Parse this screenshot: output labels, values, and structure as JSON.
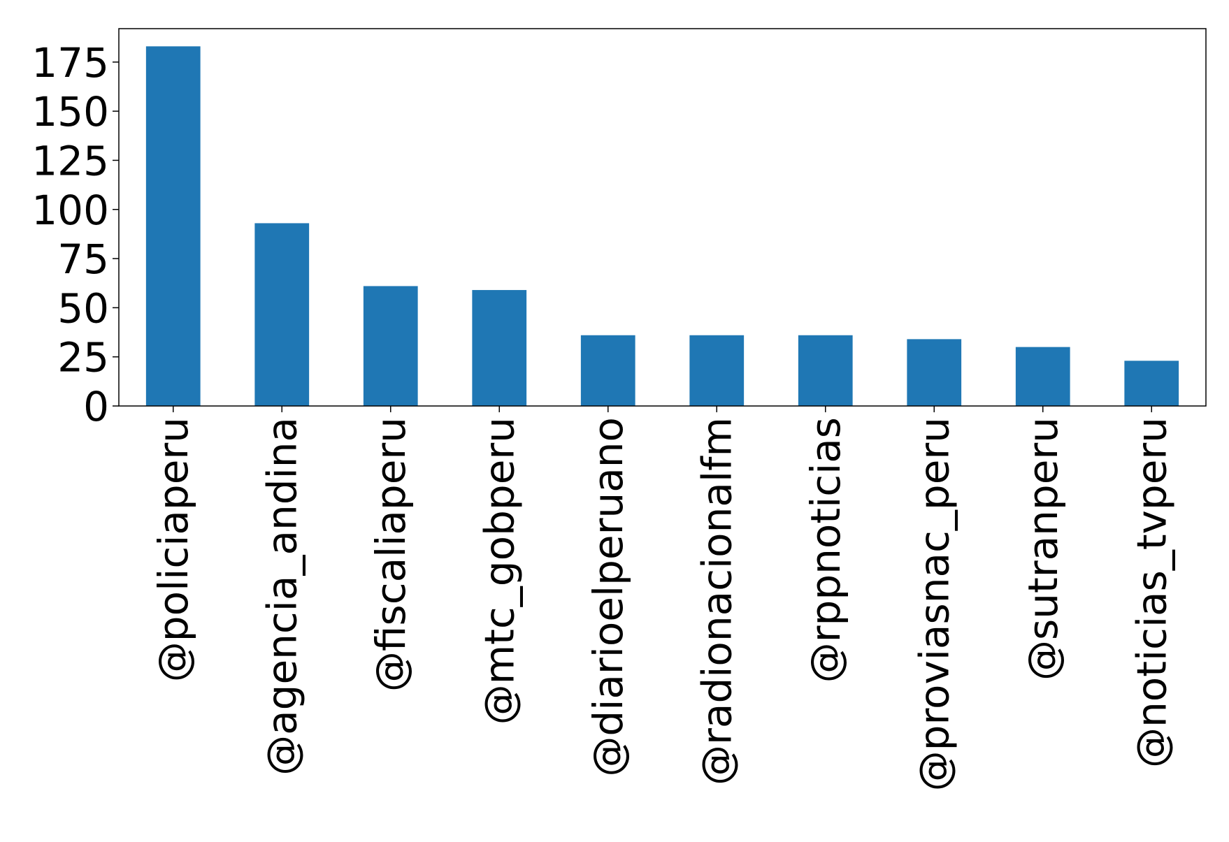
{
  "chart_data": {
    "type": "bar",
    "title": "",
    "xlabel": "",
    "ylabel": "",
    "categories": [
      "@policiaperu",
      "@agencia_andina",
      "@fiscaliaperu",
      "@mtc_gobperu",
      "@diarioelperuano",
      "@radionacionalfm",
      "@rppnoticias",
      "@proviasnac_peru",
      "@sutranperu",
      "@noticias_tvperu"
    ],
    "values": [
      183,
      93,
      61,
      59,
      36,
      36,
      36,
      34,
      30,
      23
    ],
    "ylim": [
      0,
      192
    ],
    "yticks": [
      0,
      25,
      50,
      75,
      100,
      125,
      150,
      175
    ],
    "grid": false,
    "legend": "none",
    "colors": {
      "bar": "#1f77b4",
      "axis": "#000000",
      "background": "#ffffff"
    }
  }
}
